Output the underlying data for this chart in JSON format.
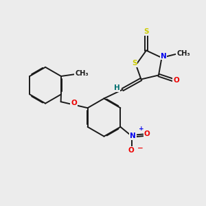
{
  "bg_color": "#ececec",
  "bond_color": "#1a1a1a",
  "atom_colors": {
    "S": "#cccc00",
    "N": "#0000ee",
    "O": "#ee0000",
    "H": "#007070",
    "C": "#1a1a1a"
  },
  "bond_width": 1.4,
  "font_size": 7.5,
  "xlim": [
    0,
    10
  ],
  "ylim": [
    0,
    10
  ]
}
